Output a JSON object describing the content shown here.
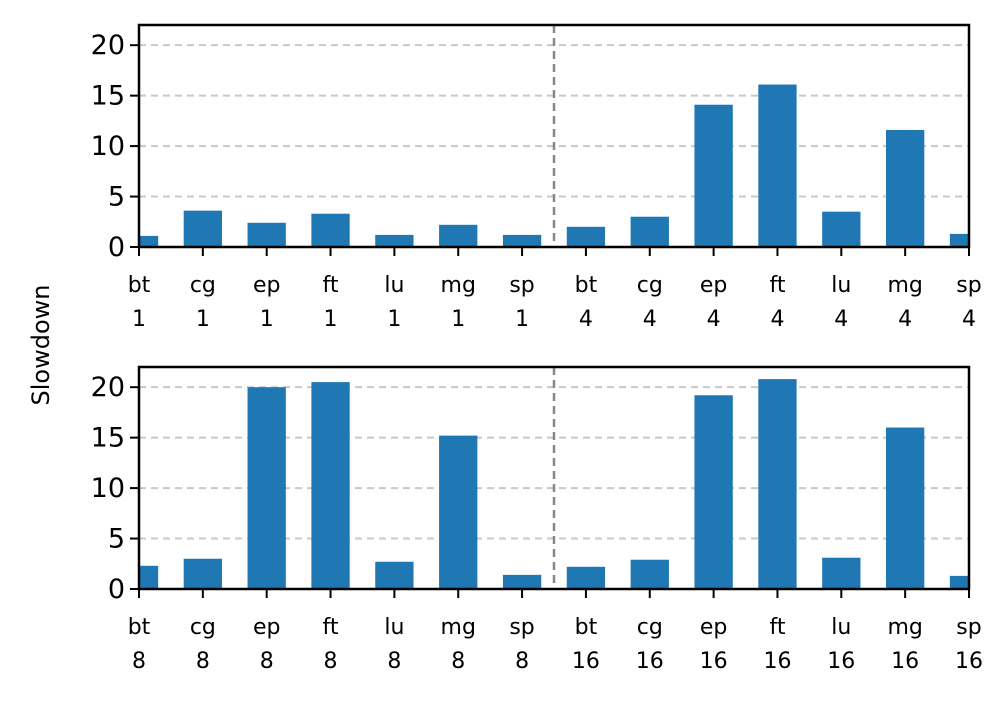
{
  "chart_data": {
    "type": "bar",
    "ylabel": "Slowdown",
    "bar_color": "#1f77b4",
    "divider_color": "#888888",
    "grid_color": "#c8c8c8",
    "grid": "y-dashed",
    "panels": [
      {
        "categories": [
          [
            "bt",
            "1"
          ],
          [
            "cg",
            "1"
          ],
          [
            "ep",
            "1"
          ],
          [
            "ft",
            "1"
          ],
          [
            "lu",
            "1"
          ],
          [
            "mg",
            "1"
          ],
          [
            "sp",
            "1"
          ],
          [
            "bt",
            "4"
          ],
          [
            "cg",
            "4"
          ],
          [
            "ep",
            "4"
          ],
          [
            "ft",
            "4"
          ],
          [
            "lu",
            "4"
          ],
          [
            "mg",
            "4"
          ],
          [
            "sp",
            "4"
          ]
        ],
        "values": [
          1.1,
          3.6,
          2.4,
          3.3,
          1.2,
          2.2,
          1.2,
          2.0,
          3.0,
          14.1,
          16.1,
          3.5,
          11.6,
          1.3
        ],
        "ylim": [
          0,
          22
        ],
        "yticks": [
          "0",
          "5",
          "10",
          "15",
          "20"
        ]
      },
      {
        "categories": [
          [
            "bt",
            "8"
          ],
          [
            "cg",
            "8"
          ],
          [
            "ep",
            "8"
          ],
          [
            "ft",
            "8"
          ],
          [
            "lu",
            "8"
          ],
          [
            "mg",
            "8"
          ],
          [
            "sp",
            "8"
          ],
          [
            "bt",
            "16"
          ],
          [
            "cg",
            "16"
          ],
          [
            "ep",
            "16"
          ],
          [
            "ft",
            "16"
          ],
          [
            "lu",
            "16"
          ],
          [
            "mg",
            "16"
          ],
          [
            "sp",
            "16"
          ]
        ],
        "values": [
          2.3,
          3.0,
          20.0,
          20.5,
          2.7,
          15.2,
          1.4,
          2.2,
          2.9,
          19.2,
          20.8,
          3.1,
          16.0,
          1.3
        ],
        "ylim": [
          0,
          22
        ],
        "yticks": [
          "0",
          "5",
          "10",
          "15",
          "20"
        ]
      }
    ]
  }
}
